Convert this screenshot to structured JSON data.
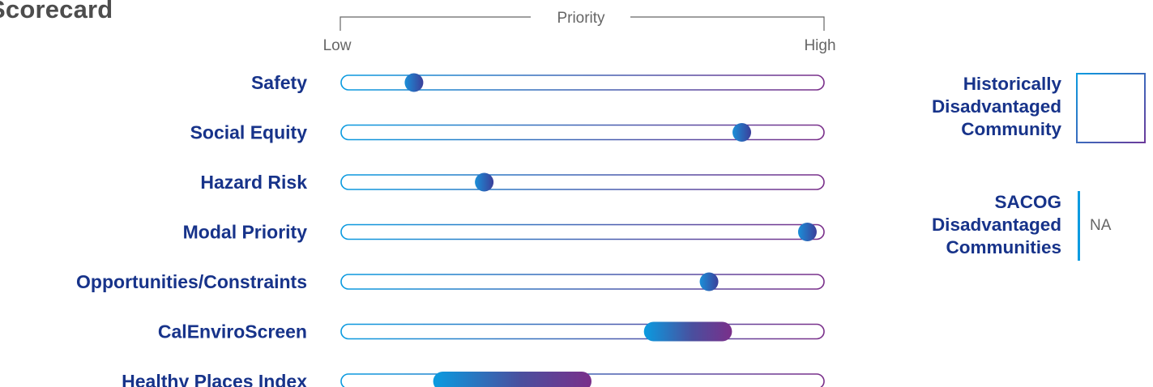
{
  "title": "Scorecard",
  "chart_data": {
    "type": "dot-range",
    "axis": {
      "title": "Priority",
      "low_label": "Low",
      "high_label": "High",
      "range": [
        0,
        1
      ]
    },
    "rows": [
      {
        "label": "Safety",
        "kind": "point",
        "value": 0.14
      },
      {
        "label": "Social Equity",
        "kind": "point",
        "value": 0.84
      },
      {
        "label": "Hazard Risk",
        "kind": "point",
        "value": 0.29
      },
      {
        "label": "Modal Priority",
        "kind": "point",
        "value": 0.98
      },
      {
        "label": "Opportunities/Constraints",
        "kind": "point",
        "value": 0.77
      },
      {
        "label": "CalEnviroScreen",
        "kind": "range",
        "range": [
          0.65,
          0.8
        ]
      },
      {
        "label": "Healthy Places Index",
        "kind": "range",
        "range": [
          0.2,
          0.5
        ]
      }
    ],
    "colors": {
      "label": "#17338a",
      "gradient_start": "#0a9be0",
      "gradient_end": "#7a2f8a"
    }
  },
  "side_panel": {
    "historically_disadvantaged": {
      "lines": [
        "Historically",
        "Disadvantaged",
        "Community"
      ]
    },
    "sacog": {
      "lines": [
        "SACOG",
        "Disadvantaged",
        "Communities"
      ],
      "value": "NA"
    }
  }
}
